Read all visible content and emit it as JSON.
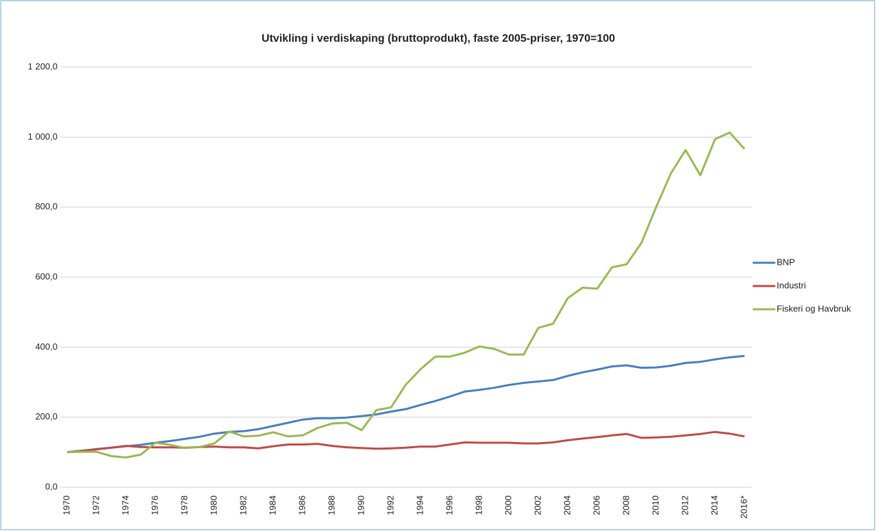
{
  "chart_data": {
    "type": "line",
    "title": "Utvikling i verdiskaping (bruttoprodukt), faste 2005-priser, 1970=100",
    "categories": [
      "1970",
      null,
      "1972",
      null,
      "1974",
      null,
      "1976",
      null,
      "1978",
      null,
      "1980",
      null,
      "1982",
      null,
      "1984",
      null,
      "1986",
      null,
      "1988",
      null,
      "1990",
      null,
      "1992",
      null,
      "1994",
      null,
      "1996",
      null,
      "1998",
      null,
      "2000",
      null,
      "2002",
      null,
      "2004",
      null,
      "2006",
      null,
      "2008",
      null,
      "2010",
      null,
      "2012",
      null,
      "2014",
      null,
      "2016*"
    ],
    "series": [
      {
        "name": "BNP",
        "color": "#4a7ebb",
        "values": [
          100,
          104,
          109,
          113,
          117,
          121,
          127,
          132,
          138,
          144,
          153,
          158,
          160,
          166,
          175,
          184,
          193,
          197,
          197,
          199,
          203,
          208,
          216,
          223,
          235,
          246,
          259,
          273,
          278,
          284,
          292,
          298,
          302,
          306,
          318,
          328,
          336,
          345,
          348,
          341,
          342,
          347,
          355,
          358,
          365,
          371,
          375
        ]
      },
      {
        "name": "Industri",
        "color": "#be4b48",
        "values": [
          100,
          104,
          108,
          113,
          118,
          115,
          114,
          114,
          113,
          115,
          116,
          114,
          114,
          111,
          117,
          122,
          122,
          124,
          118,
          114,
          112,
          110,
          111,
          113,
          116,
          116,
          122,
          128,
          127,
          127,
          127,
          125,
          125,
          128,
          134,
          139,
          143,
          148,
          152,
          141,
          142,
          144,
          148,
          152,
          158,
          153,
          145
        ]
      },
      {
        "name": "Fiskeri og Havbruk",
        "color": "#98b954",
        "values": [
          100,
          101,
          101,
          89,
          85,
          93,
          127,
          121,
          112,
          115,
          125,
          159,
          145,
          147,
          157,
          145,
          148,
          169,
          182,
          184,
          163,
          220,
          228,
          293,
          337,
          373,
          373,
          384,
          402,
          395,
          379,
          379,
          455,
          467,
          540,
          570,
          567,
          628,
          637,
          698,
          800,
          896,
          963,
          891,
          994,
          1013,
          966
        ]
      }
    ],
    "ylim": [
      0,
      1200
    ],
    "yticks": [
      {
        "value": 0,
        "label": "0,0"
      },
      {
        "value": 200,
        "label": "200,0"
      },
      {
        "value": 400,
        "label": "400,0"
      },
      {
        "value": 600,
        "label": "600,0"
      },
      {
        "value": 800,
        "label": "800,0"
      },
      {
        "value": 1000,
        "label": "1 000,0"
      },
      {
        "value": 1200,
        "label": "1 200,0"
      }
    ],
    "grid": true,
    "legend": "right"
  }
}
